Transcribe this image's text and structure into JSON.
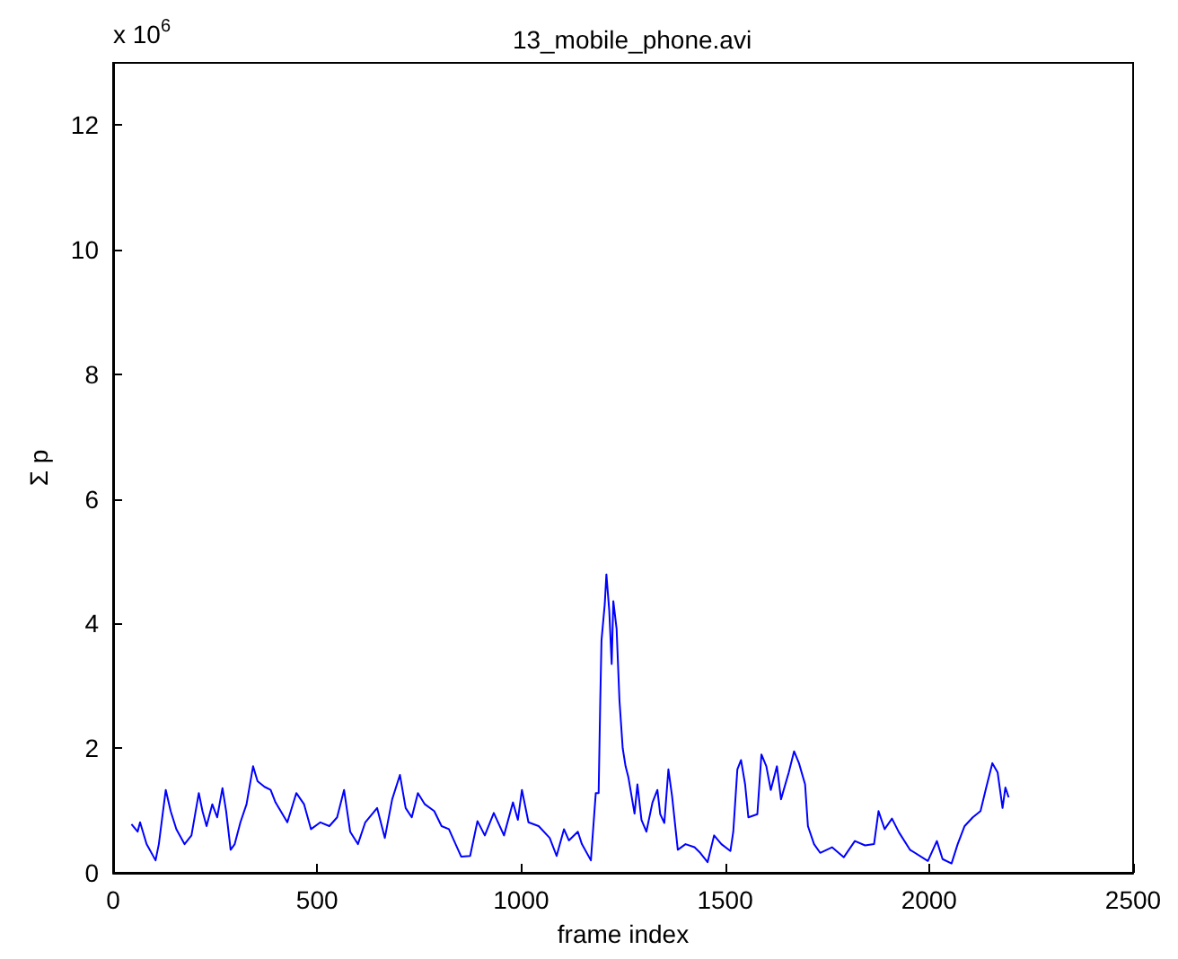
{
  "chart_data": {
    "type": "line",
    "title": "13_mobile_phone.avi",
    "xlabel": "frame index",
    "ylabel": "Σ p",
    "annotations": [
      "x 10$^{6}$"
    ],
    "x": [
      45,
      60,
      66,
      82,
      104,
      112,
      129,
      141,
      155,
      175,
      192,
      210,
      219,
      229,
      243,
      255,
      268,
      277,
      288,
      298,
      312,
      327,
      343,
      354,
      371,
      386,
      398,
      427,
      449,
      468,
      485,
      508,
      530,
      549,
      566,
      581,
      600,
      618,
      647,
      666,
      684,
      703,
      717,
      732,
      747,
      764,
      787,
      805,
      823,
      853,
      875,
      893,
      911,
      933,
      958,
      980,
      992,
      1002,
      1018,
      1043,
      1070,
      1087,
      1105,
      1117,
      1139,
      1149,
      1171,
      1183,
      1190,
      1194,
      1197,
      1205,
      1209,
      1216,
      1222,
      1226,
      1234,
      1241,
      1249,
      1256,
      1263,
      1278,
      1285,
      1295,
      1307,
      1322,
      1334,
      1341,
      1351,
      1361,
      1370,
      1384,
      1403,
      1425,
      1439,
      1457,
      1473,
      1491,
      1513,
      1520,
      1530,
      1539,
      1549,
      1557,
      1579,
      1589,
      1601,
      1612,
      1627,
      1637,
      1656,
      1669,
      1681,
      1696,
      1703,
      1718,
      1733,
      1762,
      1791,
      1818,
      1843,
      1865,
      1876,
      1891,
      1909,
      1926,
      1953,
      1997,
      2019,
      2033,
      2055,
      2070,
      2087,
      2107,
      2126,
      2140,
      2155,
      2168,
      2180,
      2187,
      2195
    ],
    "series": [
      {
        "color": "#0000ff",
        "values": [
          0.78,
          0.66,
          0.81,
          0.46,
          0.2,
          0.46,
          1.33,
          0.99,
          0.7,
          0.46,
          0.6,
          1.28,
          0.99,
          0.75,
          1.1,
          0.89,
          1.36,
          0.99,
          0.37,
          0.46,
          0.81,
          1.1,
          1.71,
          1.47,
          1.38,
          1.33,
          1.13,
          0.81,
          1.28,
          1.1,
          0.7,
          0.81,
          0.75,
          0.89,
          1.33,
          0.66,
          0.46,
          0.81,
          1.04,
          0.56,
          1.18,
          1.57,
          1.04,
          0.89,
          1.28,
          1.1,
          0.99,
          0.75,
          0.7,
          0.26,
          0.27,
          0.83,
          0.6,
          0.96,
          0.6,
          1.13,
          0.85,
          1.33,
          0.81,
          0.75,
          0.56,
          0.27,
          0.7,
          0.52,
          0.66,
          0.46,
          0.2,
          1.28,
          1.28,
          2.77,
          3.73,
          4.31,
          4.79,
          4.21,
          3.35,
          4.36,
          3.92,
          2.77,
          2.0,
          1.71,
          1.53,
          0.95,
          1.42,
          0.85,
          0.66,
          1.13,
          1.33,
          0.94,
          0.8,
          1.66,
          1.23,
          0.37,
          0.46,
          0.41,
          0.32,
          0.17,
          0.6,
          0.46,
          0.35,
          0.66,
          1.66,
          1.81,
          1.42,
          0.89,
          0.94,
          1.9,
          1.71,
          1.33,
          1.71,
          1.18,
          1.61,
          1.95,
          1.76,
          1.42,
          0.75,
          0.46,
          0.32,
          0.41,
          0.25,
          0.51,
          0.44,
          0.46,
          0.99,
          0.7,
          0.87,
          0.65,
          0.37,
          0.19,
          0.51,
          0.22,
          0.15,
          0.46,
          0.75,
          0.89,
          0.99,
          1.37,
          1.76,
          1.61,
          1.04,
          1.37,
          1.21
        ]
      }
    ],
    "xlim": [
      0,
      2500
    ],
    "xticks": [
      0,
      500,
      1000,
      1500,
      2000,
      2500
    ],
    "ylim": [
      0,
      13
    ],
    "yticks": [
      0,
      2,
      4,
      6,
      8,
      10,
      12
    ],
    "marker": "none",
    "line_style": "solid"
  }
}
